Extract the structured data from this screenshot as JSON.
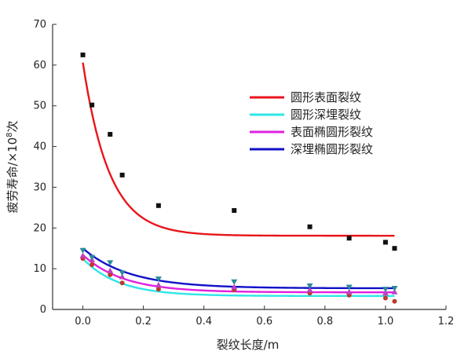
{
  "chart_data": {
    "type": "scatter",
    "xlabel": "裂纹长度/m",
    "ylabel_parts": {
      "prefix": "疲劳寿命/×10",
      "superscript": "8",
      "suffix": "次"
    },
    "xlim": [
      -0.1,
      1.2
    ],
    "ylim": [
      0,
      70
    ],
    "x_ticks": [
      "0.0",
      "0.2",
      "0.4",
      "0.6",
      "0.8",
      "1.0",
      "1.2"
    ],
    "y_ticks": [
      "0",
      "10",
      "20",
      "30",
      "40",
      "50",
      "60",
      "70"
    ],
    "x_tick_values": [
      0,
      0.2,
      0.4,
      0.6,
      0.8,
      1.0,
      1.2
    ],
    "y_tick_values": [
      0,
      10,
      20,
      30,
      40,
      50,
      60,
      70
    ],
    "legend_position": "center-right",
    "series": [
      {
        "name": "圆形表面裂纹",
        "color": "#e8151b",
        "marker": "square",
        "marker_color": "#111111",
        "points": [
          [
            0.0,
            62.5
          ],
          [
            0.03,
            50.2
          ],
          [
            0.09,
            43.0
          ],
          [
            0.13,
            33.0
          ],
          [
            0.25,
            25.5
          ],
          [
            0.5,
            24.3
          ],
          [
            0.75,
            20.3
          ],
          [
            0.88,
            17.5
          ],
          [
            1.0,
            16.5
          ],
          [
            1.03,
            15.0
          ]
        ],
        "fit": {
          "a": 18.1,
          "b": 42.5,
          "k": 11.5
        }
      },
      {
        "name": "圆形深埋裂纹",
        "color": "#2ee6e6",
        "marker": "circle",
        "marker_color": "#c0392b",
        "points": [
          [
            0.0,
            12.5
          ],
          [
            0.03,
            11.0
          ],
          [
            0.09,
            8.5
          ],
          [
            0.13,
            6.5
          ],
          [
            0.25,
            5.0
          ],
          [
            0.5,
            4.8
          ],
          [
            0.75,
            4.0
          ],
          [
            0.88,
            3.5
          ],
          [
            1.0,
            2.8
          ],
          [
            1.03,
            2.0
          ]
        ],
        "fit": {
          "a": 3.3,
          "b": 9.2,
          "k": 8.5
        }
      },
      {
        "name": "表面椭圆形裂纹",
        "color": "#e020e0",
        "marker": "triangle-up",
        "marker_color": "#c040c0",
        "points": [
          [
            0.0,
            13.2
          ],
          [
            0.03,
            12.2
          ],
          [
            0.09,
            9.5
          ],
          [
            0.13,
            8.0
          ],
          [
            0.25,
            6.0
          ],
          [
            0.5,
            5.5
          ],
          [
            0.75,
            4.8
          ],
          [
            0.88,
            4.3
          ],
          [
            1.0,
            4.0
          ],
          [
            1.03,
            4.3
          ]
        ],
        "fit": {
          "a": 4.2,
          "b": 9.2,
          "k": 7.5
        }
      },
      {
        "name": "深埋椭圆形裂纹",
        "color": "#1010c8",
        "marker": "triangle-down",
        "marker_color": "#2a8a9a",
        "points": [
          [
            0.0,
            14.5
          ],
          [
            0.03,
            12.8
          ],
          [
            0.09,
            11.5
          ],
          [
            0.13,
            9.0
          ],
          [
            0.25,
            7.5
          ],
          [
            0.5,
            6.8
          ],
          [
            0.75,
            5.8
          ],
          [
            0.88,
            5.5
          ],
          [
            1.0,
            5.0
          ],
          [
            1.03,
            5.2
          ]
        ],
        "fit": {
          "a": 5.2,
          "b": 9.8,
          "k": 6.5
        }
      }
    ]
  }
}
